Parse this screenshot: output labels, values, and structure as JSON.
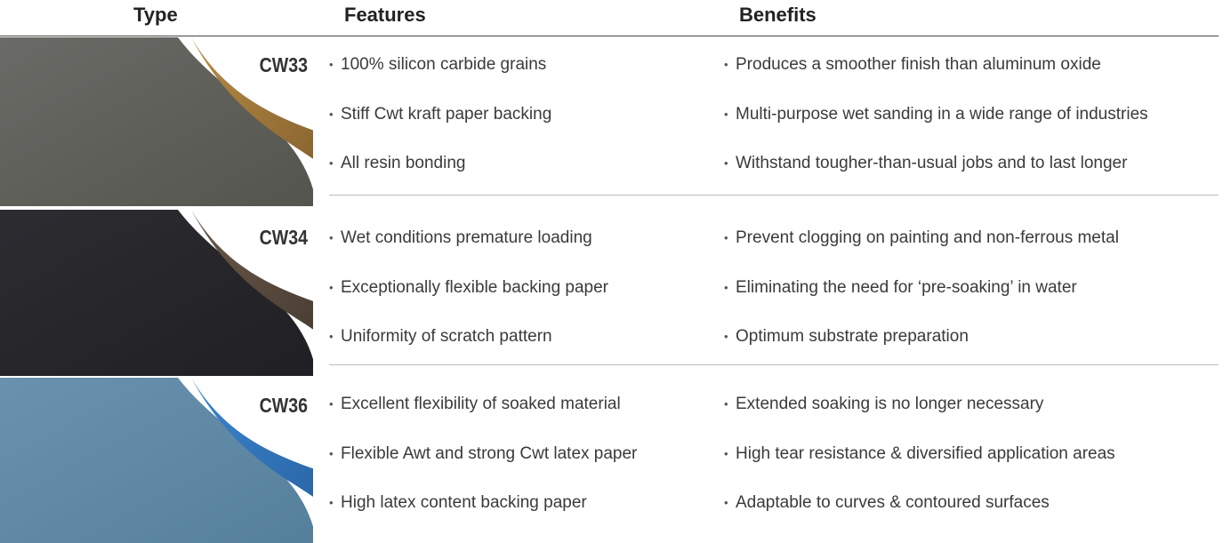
{
  "header": {
    "type": "Type",
    "features": "Features",
    "benefits": "Benefits"
  },
  "rows": [
    {
      "name": "CW33",
      "features": [
        "100% silicon carbide grains",
        "Stiff Cwt kraft paper backing",
        "All resin bonding"
      ],
      "benefits": [
        "Produces a smoother finish than aluminum oxide",
        "Multi-purpose wet sanding in a wide range of industries",
        "Withstand tougher-than-usual jobs and to last longer"
      ]
    },
    {
      "name": "CW34",
      "features": [
        "Wet conditions premature loading",
        "Exceptionally flexible backing paper",
        "Uniformity of scratch pattern"
      ],
      "benefits": [
        "Prevent clogging on painting and non-ferrous metal",
        "Eliminating the need for ‘pre-soaking’ in water",
        "Optimum substrate preparation"
      ]
    },
    {
      "name": "CW36",
      "features": [
        "Excellent flexibility of soaked material",
        "Flexible Awt and strong Cwt latex paper",
        "High latex content backing  paper"
      ],
      "benefits": [
        "Extended soaking is no longer necessary",
        "High tear resistance & diversified application areas",
        "Adaptable to curves & contoured surfaces"
      ]
    }
  ]
}
